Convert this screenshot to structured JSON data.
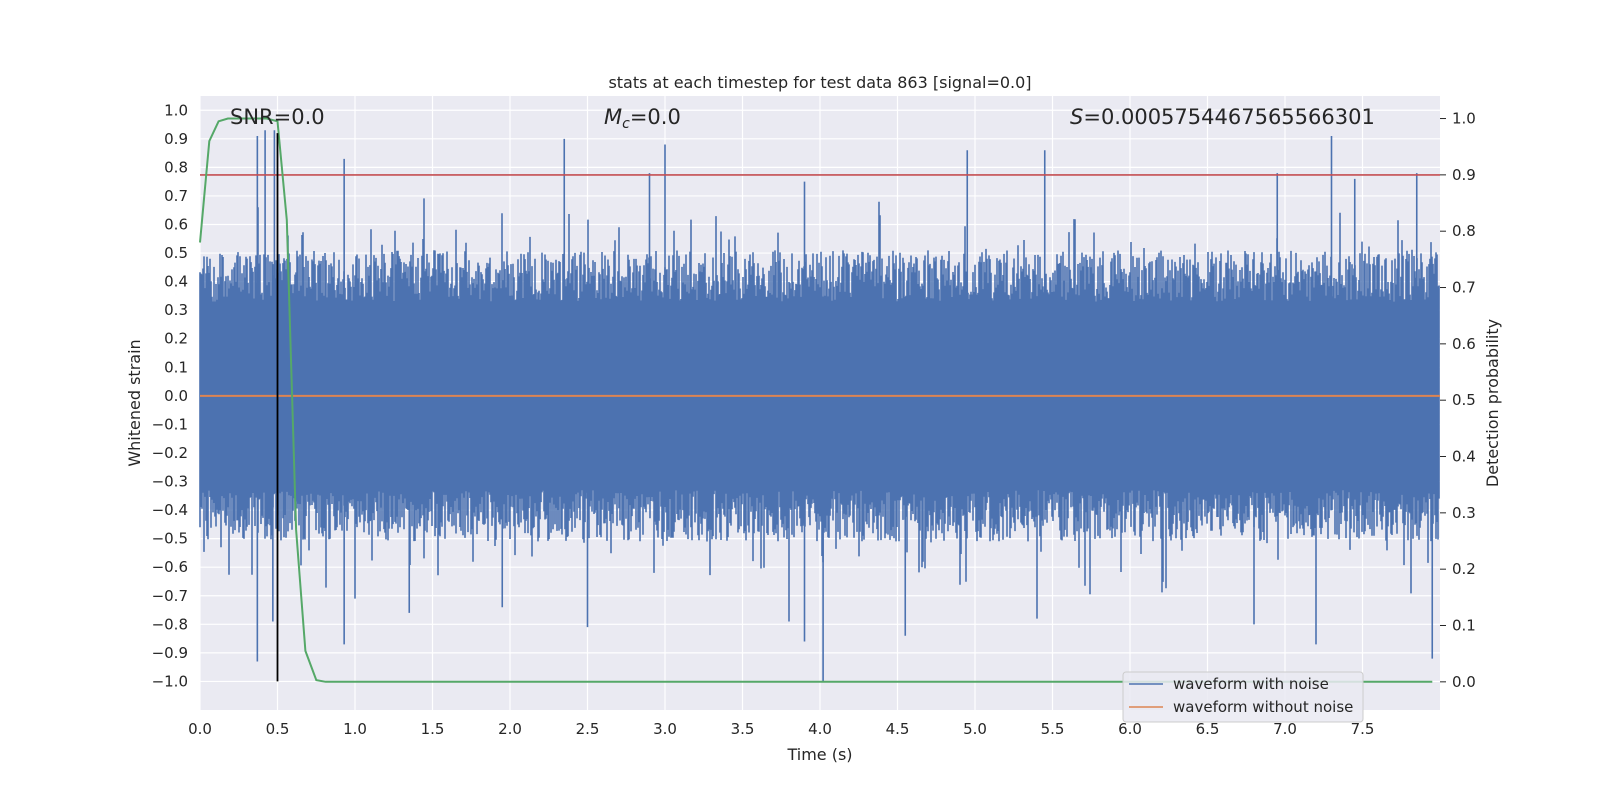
{
  "chart_data": {
    "type": "line",
    "title": "stats at each timestep for test data 863 [signal=0.0]",
    "xlabel": "Time (s)",
    "ylabel": "Whitened strain",
    "y2label": "Detection probability",
    "xlim": [
      0.0,
      8.0
    ],
    "ylim": [
      -1.1,
      1.05
    ],
    "y2lim": [
      -0.05,
      1.04
    ],
    "x_ticks": [
      "0.0",
      "0.5",
      "1.0",
      "1.5",
      "2.0",
      "2.5",
      "3.0",
      "3.5",
      "4.0",
      "4.5",
      "5.0",
      "5.5",
      "6.0",
      "6.5",
      "7.0",
      "7.5"
    ],
    "y_ticks": [
      "1.0",
      "0.9",
      "0.8",
      "0.7",
      "0.6",
      "0.5",
      "0.4",
      "0.3",
      "0.2",
      "0.1",
      "0.0",
      "−0.1",
      "−0.2",
      "−0.3",
      "−0.4",
      "−0.5",
      "−0.6",
      "−0.7",
      "−0.8",
      "−0.9",
      "−1.0"
    ],
    "y2_ticks": [
      "1.0",
      "0.9",
      "0.8",
      "0.7",
      "0.6",
      "0.5",
      "0.4",
      "0.3",
      "0.2",
      "0.1",
      "0.0"
    ],
    "grid": true,
    "legend_position": "lower-right",
    "annotations": {
      "snr": "SNR=0.0",
      "mc_symbol": "M",
      "mc_sub": "c",
      "mc_value": "=0.0",
      "s_symbol": "S",
      "s_value": "=0.0005754467565566301"
    },
    "series": [
      {
        "name": "waveform with noise",
        "color": "#4c72b0",
        "axis": "left",
        "envelope": "noise with |amplitude| mostly within 0.3–0.5, peaks up to 0.93 and down to −1.0",
        "notable_peaks": [
          {
            "x": 0.37,
            "y": 0.91
          },
          {
            "x": 0.42,
            "y": 0.93
          },
          {
            "x": 0.48,
            "y": 0.93
          },
          {
            "x": 0.93,
            "y": 0.83
          },
          {
            "x": 2.35,
            "y": 0.9
          },
          {
            "x": 3.0,
            "y": 0.88
          },
          {
            "x": 2.9,
            "y": 0.78
          },
          {
            "x": 3.9,
            "y": 0.75
          },
          {
            "x": 4.95,
            "y": 0.86
          },
          {
            "x": 5.45,
            "y": 0.86
          },
          {
            "x": 6.95,
            "y": 0.78
          },
          {
            "x": 7.3,
            "y": 0.91
          },
          {
            "x": 7.85,
            "y": 0.78
          },
          {
            "x": 7.45,
            "y": 0.76
          }
        ],
        "notable_troughs": [
          {
            "x": 0.37,
            "y": -0.93
          },
          {
            "x": 0.47,
            "y": -0.79
          },
          {
            "x": 0.93,
            "y": -0.87
          },
          {
            "x": 1.0,
            "y": -0.71
          },
          {
            "x": 1.35,
            "y": -0.76
          },
          {
            "x": 1.95,
            "y": -0.74
          },
          {
            "x": 2.5,
            "y": -0.81
          },
          {
            "x": 3.8,
            "y": -0.79
          },
          {
            "x": 3.9,
            "y": -0.86
          },
          {
            "x": 4.02,
            "y": -1.0
          },
          {
            "x": 4.55,
            "y": -0.84
          },
          {
            "x": 5.4,
            "y": -0.78
          },
          {
            "x": 6.8,
            "y": -0.8
          },
          {
            "x": 7.2,
            "y": -0.87
          },
          {
            "x": 7.95,
            "y": -0.92
          }
        ]
      },
      {
        "name": "waveform without noise",
        "color": "#dd8452",
        "axis": "left",
        "x": [
          0.0,
          8.0
        ],
        "y": [
          0.0,
          0.0
        ]
      },
      {
        "color": "#55a868",
        "axis": "right",
        "x": [
          0.0,
          0.06,
          0.12,
          0.18,
          0.25,
          0.31,
          0.37,
          0.43,
          0.5,
          0.56,
          0.62,
          0.68,
          0.75,
          0.81,
          1.0,
          2.0,
          4.0,
          6.0,
          7.95
        ],
        "y": [
          0.78,
          0.96,
          0.995,
          1.0,
          1.0,
          1.0,
          1.0,
          1.0,
          0.995,
          0.82,
          0.27,
          0.055,
          0.003,
          0.0,
          0.0,
          0.0,
          0.0,
          0.0,
          0.0
        ]
      },
      {
        "color": "#c44e52",
        "axis": "right",
        "x": [
          0.0,
          8.0
        ],
        "y": [
          0.9,
          0.9
        ]
      },
      {
        "color": "#000000",
        "axis": "left",
        "x": [
          0.5,
          0.5
        ],
        "y": [
          -1.0,
          0.92
        ]
      }
    ]
  }
}
